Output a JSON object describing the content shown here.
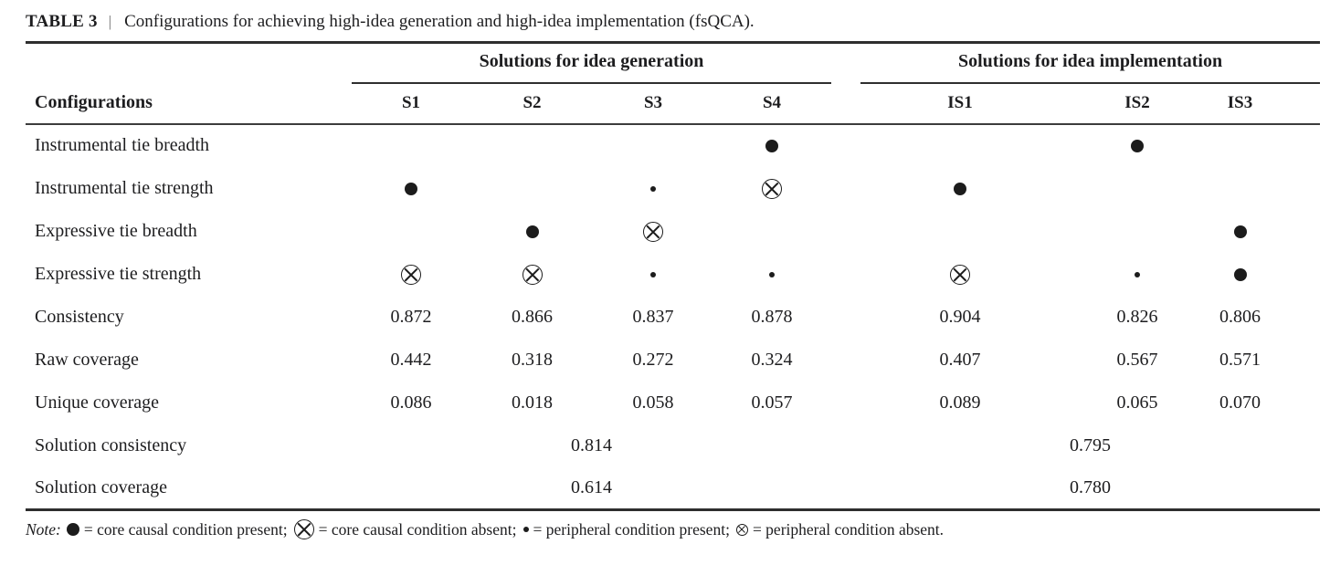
{
  "title": {
    "tag": "TABLE 3",
    "separator": "|",
    "text": "Configurations for achieving high-idea generation and high-idea implementation (fsQCA)."
  },
  "table": {
    "row_header": "Configurations",
    "groups": [
      {
        "label": "Solutions for idea generation",
        "columns": [
          "S1",
          "S2",
          "S3",
          "S4"
        ]
      },
      {
        "label": "Solutions for idea implementation",
        "columns": [
          "IS1",
          "IS2",
          "IS3"
        ]
      }
    ],
    "condition_rows": [
      {
        "label": "Instrumental tie breadth",
        "cells": [
          "",
          "",
          "",
          "core_present",
          "",
          "core_present",
          ""
        ]
      },
      {
        "label": "Instrumental tie strength",
        "cells": [
          "core_present",
          "",
          "peripheral_present",
          "core_absent",
          "core_present",
          "",
          ""
        ]
      },
      {
        "label": "Expressive tie breadth",
        "cells": [
          "",
          "core_present",
          "core_absent",
          "",
          "",
          "",
          "core_present"
        ]
      },
      {
        "label": "Expressive tie strength",
        "cells": [
          "core_absent",
          "core_absent",
          "peripheral_present",
          "peripheral_present",
          "core_absent",
          "peripheral_present",
          "core_present"
        ]
      }
    ],
    "metric_rows": [
      {
        "label": "Consistency",
        "cells": [
          "0.872",
          "0.866",
          "0.837",
          "0.878",
          "0.904",
          "0.826",
          "0.806"
        ]
      },
      {
        "label": "Raw coverage",
        "cells": [
          "0.442",
          "0.318",
          "0.272",
          "0.324",
          "0.407",
          "0.567",
          "0.571"
        ]
      },
      {
        "label": "Unique coverage",
        "cells": [
          "0.086",
          "0.018",
          "0.058",
          "0.057",
          "0.089",
          "0.065",
          "0.070"
        ]
      }
    ],
    "solution_rows": [
      {
        "label": "Solution consistency",
        "generation": "0.814",
        "implementation": "0.795"
      },
      {
        "label": "Solution coverage",
        "generation": "0.614",
        "implementation": "0.780"
      }
    ]
  },
  "symbols": {
    "core_present": {
      "meaning": "core causal condition present"
    },
    "core_absent": {
      "meaning": "core causal condition absent"
    },
    "peripheral_present": {
      "meaning": "peripheral condition present"
    },
    "peripheral_absent": {
      "meaning": "peripheral condition absent"
    }
  },
  "note": {
    "label": "Note:",
    "items": [
      {
        "symbol": "core_present",
        "text": "= core causal condition present;"
      },
      {
        "symbol": "core_absent",
        "text": "= core causal condition absent;"
      },
      {
        "symbol": "peripheral_present",
        "text": "= peripheral condition present;"
      },
      {
        "symbol": "peripheral_absent",
        "text": "= peripheral condition absent."
      }
    ]
  }
}
